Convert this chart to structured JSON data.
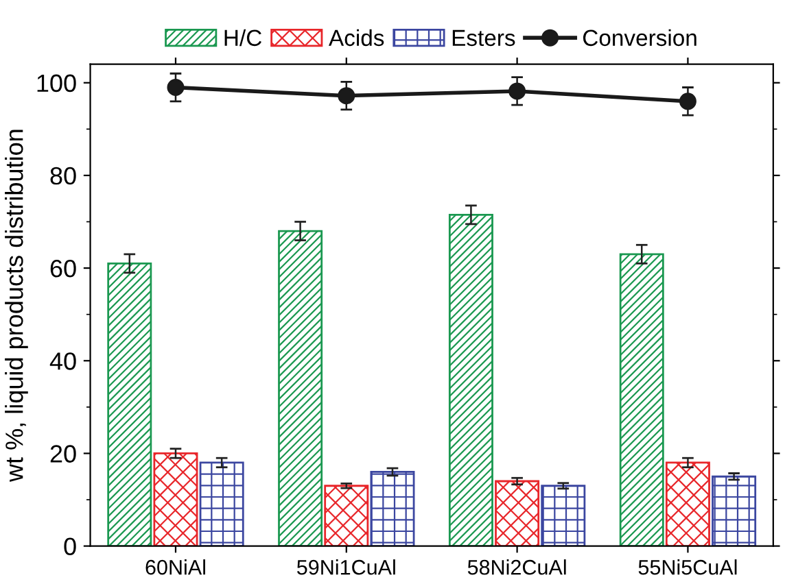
{
  "chart_data": {
    "type": "bar",
    "ylabel": "wt %, liquid products distribution",
    "categories": [
      "60NiAl",
      "59Ni1CuAl",
      "58Ni2CuAl",
      "55Ni5CuAl"
    ],
    "series": [
      {
        "name": "H/C",
        "color": "#1a9850",
        "values": [
          61,
          68,
          71.5,
          63
        ],
        "errors": [
          2,
          2,
          2,
          2
        ]
      },
      {
        "name": "Acids",
        "color": "#e8262a",
        "values": [
          20,
          13,
          14,
          18
        ],
        "errors": [
          1,
          0.5,
          0.7,
          1
        ]
      },
      {
        "name": "Esters",
        "color": "#3b46a0",
        "values": [
          18,
          16,
          13,
          15
        ],
        "errors": [
          1,
          0.8,
          0.6,
          0.7
        ]
      },
      {
        "name": "Conversion",
        "type": "line",
        "color": "#1a1a1a",
        "values": [
          99,
          97.2,
          98.2,
          96
        ],
        "errors": [
          3,
          3,
          3,
          3
        ],
        "marker": "circle"
      }
    ],
    "ylim": [
      0,
      104
    ],
    "yticks": [
      0,
      20,
      40,
      60,
      80,
      100
    ],
    "legend": "top",
    "grid": false
  }
}
